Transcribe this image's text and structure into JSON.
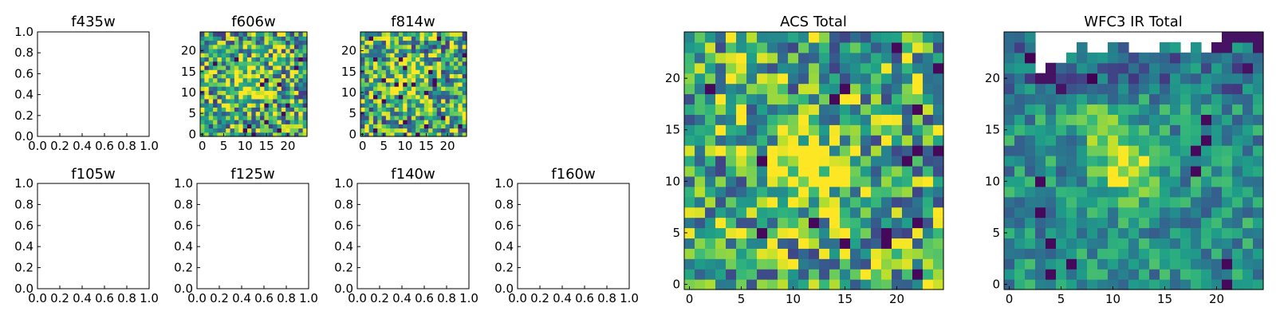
{
  "figure": {
    "background": "#ffffff",
    "colormap": "viridis"
  },
  "chart_data": [
    {
      "name": "f435w",
      "type": "empty",
      "title": "f435w",
      "xlim": [
        0,
        1
      ],
      "ylim": [
        0,
        1
      ],
      "xticks": [
        "0.0",
        "0.2",
        "0.4",
        "0.6",
        "0.8",
        "1.0"
      ],
      "yticks": [
        "0.0",
        "0.2",
        "0.4",
        "0.6",
        "0.8",
        "1.0"
      ]
    },
    {
      "name": "f606w",
      "type": "heatmap",
      "title": "f606w",
      "shape": [
        25,
        25
      ],
      "seed": 606,
      "base": 0.62,
      "noise": 0.46,
      "hot": [
        {
          "x": 11,
          "y": 12,
          "r": 3.5,
          "amp": 0.35
        }
      ],
      "xticks": [
        "0",
        "5",
        "10",
        "15",
        "20"
      ],
      "yticks": [
        "0",
        "5",
        "10",
        "15",
        "20"
      ]
    },
    {
      "name": "f814w",
      "type": "heatmap",
      "title": "f814w",
      "shape": [
        25,
        25
      ],
      "seed": 814,
      "base": 0.62,
      "noise": 0.46,
      "hot": [
        {
          "x": 11,
          "y": 12,
          "r": 3.5,
          "amp": 0.35
        }
      ],
      "xticks": [
        "0",
        "5",
        "10",
        "15",
        "20"
      ],
      "yticks": [
        "0",
        "5",
        "10",
        "15",
        "20"
      ]
    },
    {
      "name": "f105w",
      "type": "empty",
      "title": "f105w",
      "xlim": [
        0,
        1
      ],
      "ylim": [
        0,
        1
      ],
      "xticks": [
        "0.0",
        "0.2",
        "0.4",
        "0.6",
        "0.8",
        "1.0"
      ],
      "yticks": [
        "0.0",
        "0.2",
        "0.4",
        "0.6",
        "0.8",
        "1.0"
      ]
    },
    {
      "name": "f125w",
      "type": "empty",
      "title": "f125w",
      "xlim": [
        0,
        1
      ],
      "ylim": [
        0,
        1
      ],
      "xticks": [
        "0.0",
        "0.2",
        "0.4",
        "0.6",
        "0.8",
        "1.0"
      ],
      "yticks": [
        "0.0",
        "0.2",
        "0.4",
        "0.6",
        "0.8",
        "1.0"
      ]
    },
    {
      "name": "f140w",
      "type": "empty",
      "title": "f140w",
      "xlim": [
        0,
        1
      ],
      "ylim": [
        0,
        1
      ],
      "xticks": [
        "0.0",
        "0.2",
        "0.4",
        "0.6",
        "0.8",
        "1.0"
      ],
      "yticks": [
        "0.0",
        "0.2",
        "0.4",
        "0.6",
        "0.8",
        "1.0"
      ]
    },
    {
      "name": "f160w",
      "type": "empty",
      "title": "f160w",
      "xlim": [
        0,
        1
      ],
      "ylim": [
        0,
        1
      ],
      "xticks": [
        "0.0",
        "0.2",
        "0.4",
        "0.6",
        "0.8",
        "1.0"
      ],
      "yticks": [
        "0.0",
        "0.2",
        "0.4",
        "0.6",
        "0.8",
        "1.0"
      ]
    },
    {
      "name": "acs-total",
      "type": "heatmap",
      "title": "ACS Total",
      "shape": [
        25,
        25
      ],
      "seed": 1234,
      "base": 0.62,
      "noise": 0.42,
      "hot": [
        {
          "x": 11.5,
          "y": 11.5,
          "r": 2.6,
          "amp": 0.4
        }
      ],
      "xticks": [
        "0",
        "5",
        "10",
        "15",
        "20"
      ],
      "yticks": [
        "0",
        "5",
        "10",
        "15",
        "20"
      ]
    },
    {
      "name": "wfc3-ir-total",
      "type": "heatmap",
      "title": "WFC3 IR Total",
      "shape": [
        25,
        25
      ],
      "seed": 2160,
      "base": 0.5,
      "noise": 0.22,
      "hot": [
        {
          "x": 11.5,
          "y": 11.5,
          "r": 2.2,
          "amp": 0.5
        },
        {
          "x": 8.5,
          "y": 15.5,
          "r": 1.3,
          "amp": 0.35
        }
      ],
      "blank_top": [
        [
          3,
          4
        ],
        [
          4,
          3
        ],
        [
          5,
          3
        ],
        [
          6,
          2
        ],
        [
          7,
          1
        ],
        [
          8,
          2
        ],
        [
          9,
          2
        ],
        [
          10,
          1
        ],
        [
          11,
          1
        ],
        [
          12,
          2
        ],
        [
          13,
          2
        ],
        [
          14,
          2
        ],
        [
          15,
          1
        ],
        [
          16,
          1
        ],
        [
          17,
          2
        ],
        [
          18,
          1
        ],
        [
          19,
          2
        ],
        [
          20,
          1
        ]
      ],
      "dark_top": [
        [
          20,
          23
        ],
        [
          20,
          24
        ],
        [
          21,
          23
        ],
        [
          21,
          24
        ],
        [
          22,
          24
        ],
        [
          23,
          24
        ],
        [
          23,
          21
        ],
        [
          24,
          24
        ],
        [
          24,
          23
        ],
        [
          4,
          21
        ],
        [
          3,
          20
        ],
        [
          4,
          20
        ],
        [
          5,
          19
        ]
      ],
      "xticks": [
        "0",
        "5",
        "10",
        "15",
        "20"
      ],
      "yticks": [
        "0",
        "5",
        "10",
        "15",
        "20"
      ]
    }
  ]
}
